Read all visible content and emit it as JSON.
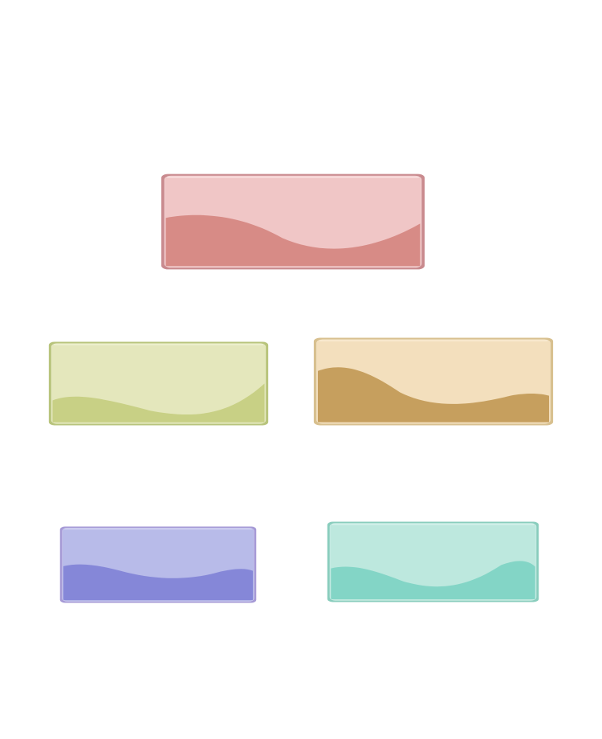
{
  "tiles": [
    {
      "id": "red",
      "colors": {
        "light": "#f0c6c6",
        "dark": "#d78b86",
        "border": "#c98a8e",
        "highlight": "#fbe8e8"
      }
    },
    {
      "id": "green",
      "colors": {
        "light": "#e4e7bc",
        "dark": "#c8d085",
        "border": "#b8c47c",
        "highlight": "#f3f5dc"
      }
    },
    {
      "id": "orange",
      "colors": {
        "light": "#f3dfbd",
        "dark": "#c69f5e",
        "border": "#d8c08f",
        "highlight": "#fbf0dc"
      }
    },
    {
      "id": "purple",
      "colors": {
        "light": "#b8bbe9",
        "dark": "#8587d8",
        "border": "#a69ad6",
        "highlight": "#dcdcf6"
      }
    },
    {
      "id": "teal",
      "colors": {
        "light": "#bde8de",
        "dark": "#83d5c6",
        "border": "#89cdbd",
        "highlight": "#e0f5f0"
      }
    }
  ]
}
